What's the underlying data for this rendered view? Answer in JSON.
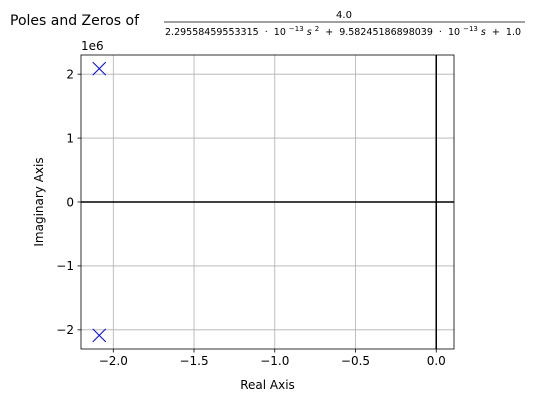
{
  "chart_data": {
    "type": "scatter",
    "title": {
      "prefix": "Poles and Zeros of",
      "numerator": "4.0",
      "denominator": {
        "a_coef": "2.29558459553315",
        "b_coef": "9.58245186898039",
        "c_coef": "1.0",
        "ten": "10",
        "exp": "−13",
        "s": "s",
        "sq": "2",
        "cdot": "·",
        "plus": "+"
      }
    },
    "xlabel": "Real Axis",
    "ylabel": "Imaginary Axis",
    "y_offset_label": "1e6",
    "xlim": [
      -2.2,
      0.11
    ],
    "ylim": [
      -2.3,
      2.3
    ],
    "y_scale_factor": 1000000,
    "x_ticks": [
      {
        "value": -2.0,
        "label": "−2.0"
      },
      {
        "value": -1.5,
        "label": "−1.5"
      },
      {
        "value": -1.0,
        "label": "−1.0"
      },
      {
        "value": -0.5,
        "label": "−0.5"
      },
      {
        "value": 0.0,
        "label": "0.0"
      }
    ],
    "y_ticks": [
      {
        "value": -2,
        "label": "−2"
      },
      {
        "value": -1,
        "label": "−1"
      },
      {
        "value": 0,
        "label": "0"
      },
      {
        "value": 1,
        "label": "1"
      },
      {
        "value": 2,
        "label": "2"
      }
    ],
    "grid": true,
    "series": [
      {
        "marker": "x",
        "color": "#0000ff",
        "points": [
          {
            "x": -2.087,
            "y": 2.087
          },
          {
            "x": -2.087,
            "y": -2.087
          }
        ]
      }
    ],
    "colors": {
      "axis_lines": "#000000",
      "grid": "#b0b0b0",
      "frame": "#000000"
    }
  }
}
